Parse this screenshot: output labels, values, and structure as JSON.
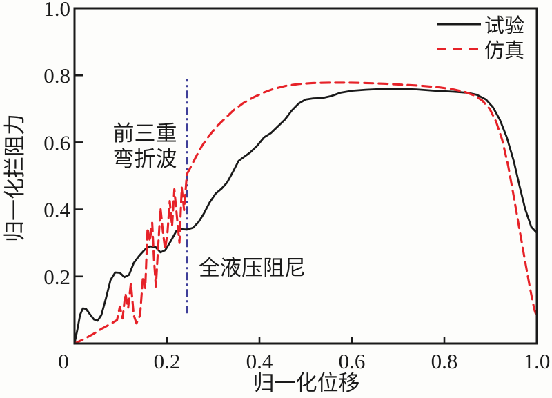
{
  "figure": {
    "background": "#fdfdfb",
    "axis_color": "#1a1a1a",
    "accent_red": "#e62228",
    "accent_blue": "#3f3f99"
  },
  "chart_data": {
    "type": "line",
    "title": "",
    "xlabel": "归一化位移",
    "ylabel": "归一化拦阻力",
    "xlim": [
      0,
      1.0
    ],
    "ylim": [
      0,
      1.0
    ],
    "grid": false,
    "xticks": [
      0,
      0.2,
      0.4,
      0.6,
      0.8,
      1.0
    ],
    "xtick_labels": [
      "0",
      "0.2",
      "0.4",
      "0.6",
      "0.8",
      "1.0"
    ],
    "yticks": [
      0.2,
      0.4,
      0.6,
      0.8,
      1.0
    ],
    "ytick_labels": [
      "0.2",
      "0.4",
      "0.6",
      "0.8",
      "1.0"
    ],
    "legend": {
      "position": "top-right",
      "entries": [
        {
          "label": "试验",
          "color": "#1a1a1a",
          "style": "solid"
        },
        {
          "label": "仿真",
          "color": "#e62228",
          "style": "dashed"
        }
      ]
    },
    "series": [
      {
        "name": "试验",
        "color": "#1a1a1a",
        "style": "solid",
        "width": 2.8,
        "points": [
          [
            0.0,
            0.0
          ],
          [
            0.006,
            0.04
          ],
          [
            0.012,
            0.085
          ],
          [
            0.018,
            0.105
          ],
          [
            0.025,
            0.103
          ],
          [
            0.033,
            0.088
          ],
          [
            0.042,
            0.072
          ],
          [
            0.05,
            0.068
          ],
          [
            0.058,
            0.085
          ],
          [
            0.068,
            0.135
          ],
          [
            0.078,
            0.19
          ],
          [
            0.088,
            0.212
          ],
          [
            0.098,
            0.211
          ],
          [
            0.108,
            0.198
          ],
          [
            0.118,
            0.205
          ],
          [
            0.128,
            0.24
          ],
          [
            0.14,
            0.262
          ],
          [
            0.152,
            0.28
          ],
          [
            0.163,
            0.29
          ],
          [
            0.175,
            0.288
          ],
          [
            0.186,
            0.272
          ],
          [
            0.196,
            0.278
          ],
          [
            0.208,
            0.305
          ],
          [
            0.22,
            0.335
          ],
          [
            0.23,
            0.341
          ],
          [
            0.243,
            0.34
          ],
          [
            0.256,
            0.345
          ],
          [
            0.268,
            0.362
          ],
          [
            0.28,
            0.388
          ],
          [
            0.292,
            0.42
          ],
          [
            0.305,
            0.447
          ],
          [
            0.318,
            0.462
          ],
          [
            0.33,
            0.48
          ],
          [
            0.342,
            0.51
          ],
          [
            0.355,
            0.545
          ],
          [
            0.368,
            0.558
          ],
          [
            0.38,
            0.57
          ],
          [
            0.395,
            0.59
          ],
          [
            0.41,
            0.615
          ],
          [
            0.425,
            0.628
          ],
          [
            0.44,
            0.648
          ],
          [
            0.455,
            0.668
          ],
          [
            0.47,
            0.695
          ],
          [
            0.485,
            0.716
          ],
          [
            0.5,
            0.728
          ],
          [
            0.515,
            0.731
          ],
          [
            0.535,
            0.732
          ],
          [
            0.555,
            0.738
          ],
          [
            0.575,
            0.748
          ],
          [
            0.6,
            0.754
          ],
          [
            0.63,
            0.757
          ],
          [
            0.66,
            0.759
          ],
          [
            0.7,
            0.76
          ],
          [
            0.74,
            0.758
          ],
          [
            0.78,
            0.754
          ],
          [
            0.82,
            0.751
          ],
          [
            0.85,
            0.748
          ],
          [
            0.87,
            0.742
          ],
          [
            0.89,
            0.728
          ],
          [
            0.905,
            0.705
          ],
          [
            0.92,
            0.668
          ],
          [
            0.935,
            0.615
          ],
          [
            0.95,
            0.545
          ],
          [
            0.963,
            0.468
          ],
          [
            0.975,
            0.4
          ],
          [
            0.988,
            0.348
          ],
          [
            1.0,
            0.33
          ]
        ]
      },
      {
        "name": "仿真",
        "color": "#e62228",
        "style": "dashed",
        "width": 3.1,
        "dash": "13 8",
        "points": [
          [
            0.0,
            0.0
          ],
          [
            0.02,
            0.013
          ],
          [
            0.04,
            0.028
          ],
          [
            0.06,
            0.045
          ],
          [
            0.08,
            0.06
          ],
          [
            0.092,
            0.07
          ],
          [
            0.098,
            0.11
          ],
          [
            0.104,
            0.075
          ],
          [
            0.11,
            0.15
          ],
          [
            0.116,
            0.105
          ],
          [
            0.122,
            0.18
          ],
          [
            0.128,
            0.085
          ],
          [
            0.134,
            0.06
          ],
          [
            0.142,
            0.085
          ],
          [
            0.148,
            0.2
          ],
          [
            0.153,
            0.165
          ],
          [
            0.158,
            0.345
          ],
          [
            0.163,
            0.305
          ],
          [
            0.168,
            0.36
          ],
          [
            0.172,
            0.25
          ],
          [
            0.176,
            0.17
          ],
          [
            0.181,
            0.29
          ],
          [
            0.186,
            0.405
          ],
          [
            0.191,
            0.335
          ],
          [
            0.196,
            0.28
          ],
          [
            0.201,
            0.33
          ],
          [
            0.206,
            0.425
          ],
          [
            0.211,
            0.35
          ],
          [
            0.216,
            0.46
          ],
          [
            0.221,
            0.385
          ],
          [
            0.227,
            0.3
          ],
          [
            0.232,
            0.465
          ],
          [
            0.237,
            0.398
          ],
          [
            0.243,
            0.505
          ],
          [
            0.252,
            0.528
          ],
          [
            0.262,
            0.555
          ],
          [
            0.275,
            0.588
          ],
          [
            0.29,
            0.618
          ],
          [
            0.308,
            0.648
          ],
          [
            0.326,
            0.672
          ],
          [
            0.345,
            0.697
          ],
          [
            0.365,
            0.717
          ],
          [
            0.385,
            0.733
          ],
          [
            0.408,
            0.748
          ],
          [
            0.432,
            0.76
          ],
          [
            0.458,
            0.769
          ],
          [
            0.485,
            0.774
          ],
          [
            0.515,
            0.777
          ],
          [
            0.55,
            0.778
          ],
          [
            0.59,
            0.778
          ],
          [
            0.63,
            0.777
          ],
          [
            0.67,
            0.775
          ],
          [
            0.71,
            0.772
          ],
          [
            0.75,
            0.769
          ],
          [
            0.79,
            0.764
          ],
          [
            0.82,
            0.758
          ],
          [
            0.845,
            0.75
          ],
          [
            0.865,
            0.74
          ],
          [
            0.882,
            0.725
          ],
          [
            0.898,
            0.7
          ],
          [
            0.912,
            0.662
          ],
          [
            0.925,
            0.608
          ],
          [
            0.938,
            0.53
          ],
          [
            0.95,
            0.44
          ],
          [
            0.962,
            0.345
          ],
          [
            0.974,
            0.25
          ],
          [
            0.986,
            0.16
          ],
          [
            0.995,
            0.1
          ],
          [
            1.0,
            0.08
          ]
        ]
      }
    ],
    "reference_line": {
      "x": 0.243,
      "y_from": 0.09,
      "y_to": 0.79,
      "color": "#3f3f99",
      "style": "dash-dot"
    },
    "annotations": [
      {
        "name": "bending-waves",
        "lines": [
          "前三重",
          "弯折波"
        ],
        "x": 0.155,
        "y": 0.6
      },
      {
        "name": "hydraulic-damping",
        "text": "全液压阻尼",
        "x": 0.27,
        "y": 0.205
      }
    ]
  }
}
